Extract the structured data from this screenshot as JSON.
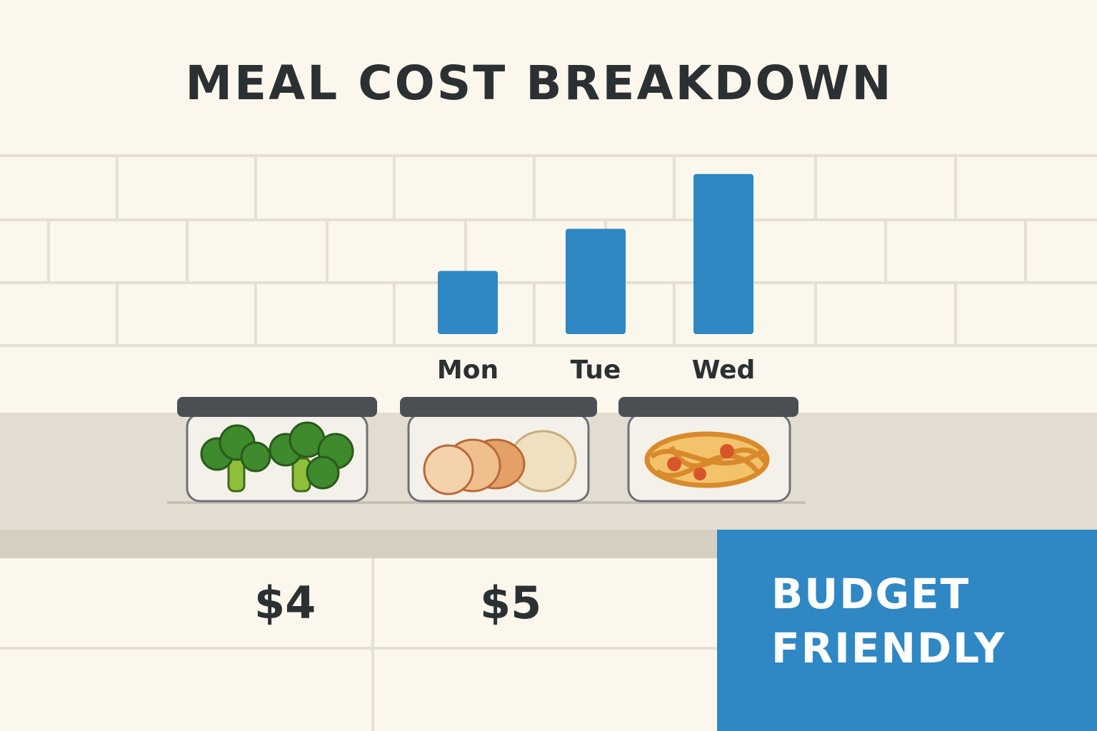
{
  "title": "MEAL COST BREAKDOWN",
  "chart_data": {
    "type": "bar",
    "categories": [
      "Mon",
      "Tue",
      "Wed"
    ],
    "values": [
      3,
      5,
      7.6
    ],
    "ylim": [
      0,
      8
    ],
    "grid": false,
    "color": "#2f87c4"
  },
  "meals": [
    {
      "icon": "broccoli-container-icon"
    },
    {
      "icon": "chicken-rice-container-icon"
    },
    {
      "icon": "pasta-container-icon"
    }
  ],
  "prices": [
    "$4",
    "$5"
  ],
  "badge": {
    "line1": "BUDGET",
    "line2": "FRIENDLY",
    "color": "#2f87c4"
  },
  "colors": {
    "wall": "#fbf7ec",
    "grout": "#e6e0d2",
    "counter": "#d8d4c6",
    "text": "#2b3033"
  }
}
